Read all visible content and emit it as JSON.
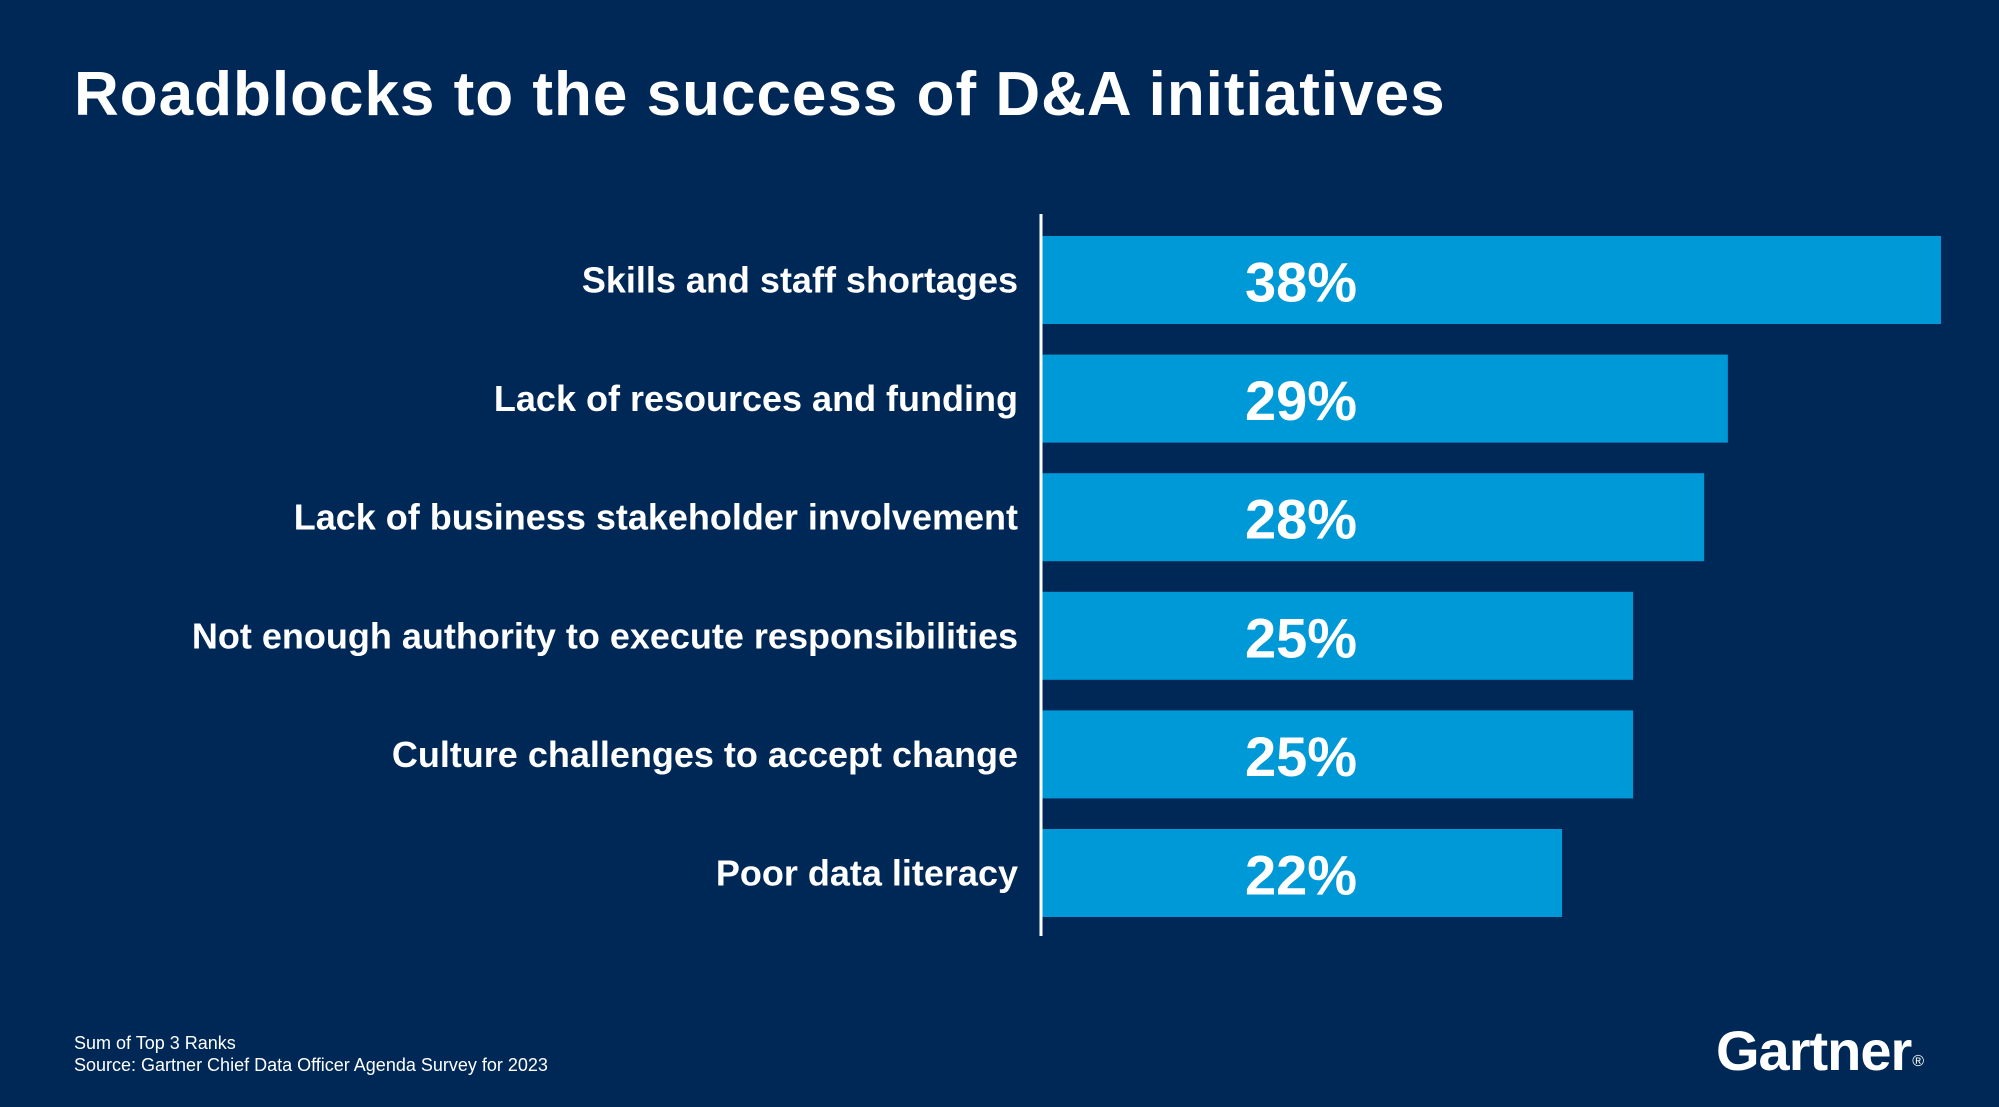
{
  "slide": {
    "title": "Roadblocks to the success of D&A initiatives",
    "footnote_line1": "Sum of Top 3 Ranks",
    "footnote_line2": "Source: Gartner Chief Data Officer Agenda Survey for 2023",
    "logo_text": "Gartner",
    "logo_mark": "®"
  },
  "colors": {
    "background": "#002856",
    "bar": "#0099D8",
    "axis": "#ffffff",
    "text": "#ffffff"
  },
  "chart_data": {
    "type": "bar",
    "orientation": "horizontal",
    "categories": [
      "Skills and staff shortages",
      "Lack of resources and funding",
      "Lack of business stakeholder involvement",
      "Not enough authority to execute responsibilities",
      "Culture challenges to accept change",
      "Poor data literacy"
    ],
    "values": [
      38,
      29,
      28,
      25,
      25,
      22
    ],
    "value_labels": [
      "38%",
      "29%",
      "28%",
      "25%",
      "25%",
      "22%"
    ],
    "unit": "%",
    "xlim": [
      0,
      38
    ],
    "grid": false,
    "legend": "none"
  }
}
